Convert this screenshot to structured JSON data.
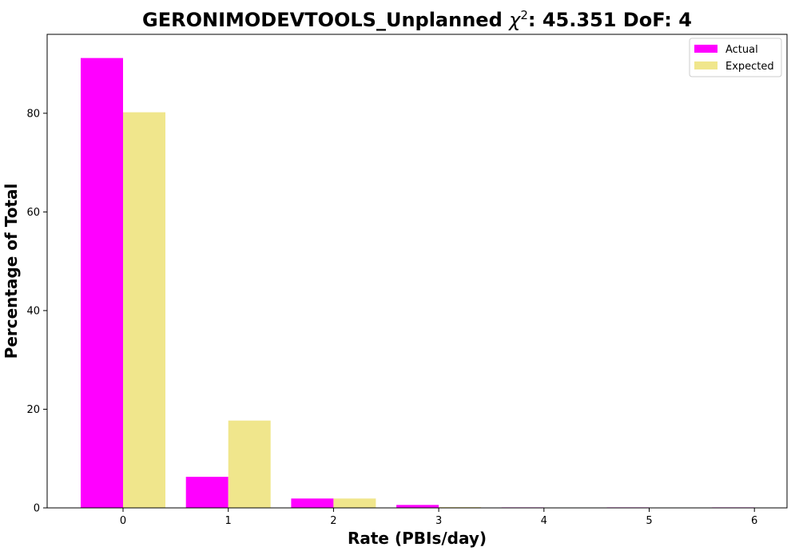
{
  "chart_data": {
    "type": "bar",
    "title": "GERONIMODEVTOOLS_Unplanned χ²: 45.351 DoF: 4",
    "title_parts": {
      "prefix": "GERONIMODEVTOOLS_Unplanned ",
      "chi": "χ",
      "sup": "2",
      "suffix": ": 45.351 DoF: 4"
    },
    "xlabel": "Rate (PBIs/day)",
    "ylabel": "Percentage of Total",
    "categories": [
      "0",
      "1",
      "2",
      "3",
      "4",
      "5",
      "6"
    ],
    "series": [
      {
        "name": "Actual",
        "color": "#ff00ff",
        "values": [
          91.2,
          6.3,
          1.9,
          0.6,
          0.1,
          0.1,
          0.1
        ]
      },
      {
        "name": "Expected",
        "color": "#f0e68c",
        "values": [
          80.2,
          17.7,
          1.9,
          0.15,
          0.01,
          0.0,
          0.0
        ]
      }
    ],
    "ylim": [
      0,
      96
    ],
    "yticks": [
      0,
      20,
      40,
      60,
      80
    ],
    "legend_position": "top-right",
    "grid": false
  }
}
